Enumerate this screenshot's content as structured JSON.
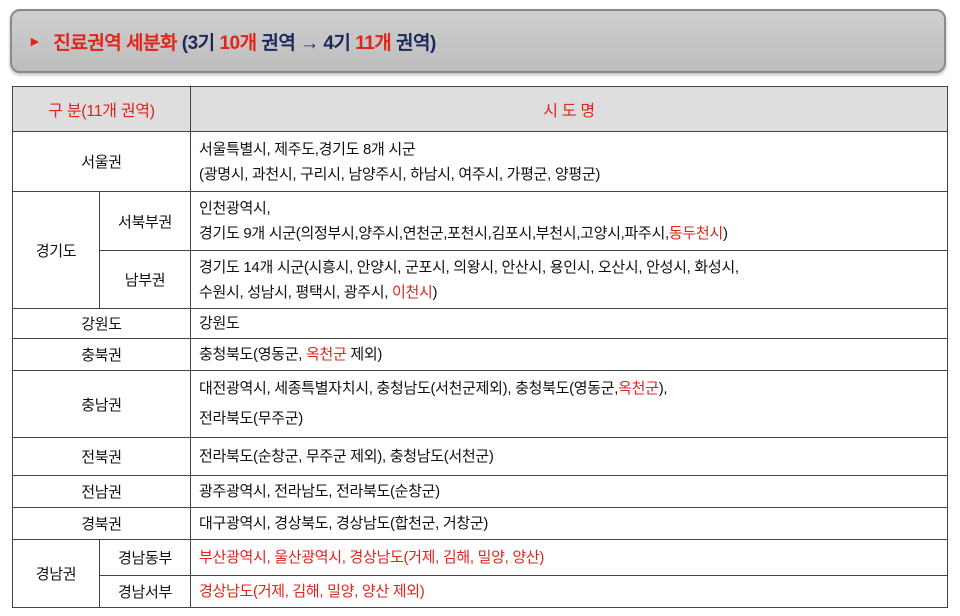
{
  "banner": {
    "arrow_icon": "triangle-right-icon",
    "segments": [
      {
        "text": "진료권역 세분화 ",
        "color": "red"
      },
      {
        "text": "(3기 ",
        "color": "navy"
      },
      {
        "text": "10개",
        "color": "red"
      },
      {
        "text": " 권역 → 4기 ",
        "color": "navy"
      },
      {
        "text": "11개",
        "color": "red"
      },
      {
        "text": " 권역)",
        "color": "navy"
      }
    ]
  },
  "table": {
    "headers": [
      "구 분(11개 권역)",
      "시 도 명"
    ],
    "rows": [
      {
        "region": "서울권",
        "lines": [
          [
            {
              "t": "서울특별시, 제주도,경기도 8개 시군"
            }
          ],
          [
            {
              "t": "(광명시, 과천시, 구리시, 남양주시, 하남시, 여주시, 가평군, 양평군)"
            }
          ]
        ]
      },
      {
        "region": "경기도",
        "sub": "서북부권",
        "lines": [
          [
            {
              "t": "인천광역시,"
            }
          ],
          [
            {
              "t": "경기도 9개 시군(의정부시,양주시,연천군,포천시,김포시,부천시,고양시,파주시,"
            },
            {
              "t": "동두천시",
              "red": true
            },
            {
              "t": ")"
            }
          ]
        ]
      },
      {
        "sub": "남부권",
        "lines": [
          [
            {
              "t": "경기도 14개 시군(시흥시, 안양시, 군포시, 의왕시, 안산시, 용인시, 오산시, 안성시, 화성시,"
            }
          ],
          [
            {
              "t": "수원시, 성남시, 평택시, 광주시, "
            },
            {
              "t": "이천시",
              "red": true
            },
            {
              "t": ")"
            }
          ]
        ]
      },
      {
        "region": "강원도",
        "lines": [
          [
            {
              "t": "강원도"
            }
          ]
        ]
      },
      {
        "region": "충북권",
        "lines": [
          [
            {
              "t": "충청북도(영동군, "
            },
            {
              "t": "옥천군",
              "red": true
            },
            {
              "t": " 제외)"
            }
          ]
        ]
      },
      {
        "region": "충남권",
        "lines": [
          [
            {
              "t": "대전광역시, 세종특별자치시, 충청남도(서천군제외), 충청북도(영동군,"
            },
            {
              "t": "옥천군",
              "red": true
            },
            {
              "t": "),"
            }
          ],
          [
            {
              "t": "전라북도(무주군)"
            }
          ]
        ]
      },
      {
        "region": "전북권",
        "lines": [
          [
            {
              "t": "전라북도(순창군, 무주군 제외), 충청남도(서천군)"
            }
          ]
        ]
      },
      {
        "region": "전남권",
        "lines": [
          [
            {
              "t": "광주광역시, 전라남도, 전라북도(순창군)"
            }
          ]
        ]
      },
      {
        "region": "경북권",
        "lines": [
          [
            {
              "t": "대구광역시, 경상북도, 경상남도(합천군, 거창군)"
            }
          ]
        ]
      },
      {
        "region": "경남권",
        "sub": "경남동부",
        "lines": [
          [
            {
              "t": "부산광역시, 울산광역시, 경상남도(거제, 김해, 밀양, 양산)",
              "red": true
            }
          ]
        ]
      },
      {
        "sub": "경남서부",
        "lines": [
          [
            {
              "t": "경상남도(거제, 김해, 밀양, 양산 제외)",
              "red": true
            }
          ]
        ]
      }
    ]
  }
}
